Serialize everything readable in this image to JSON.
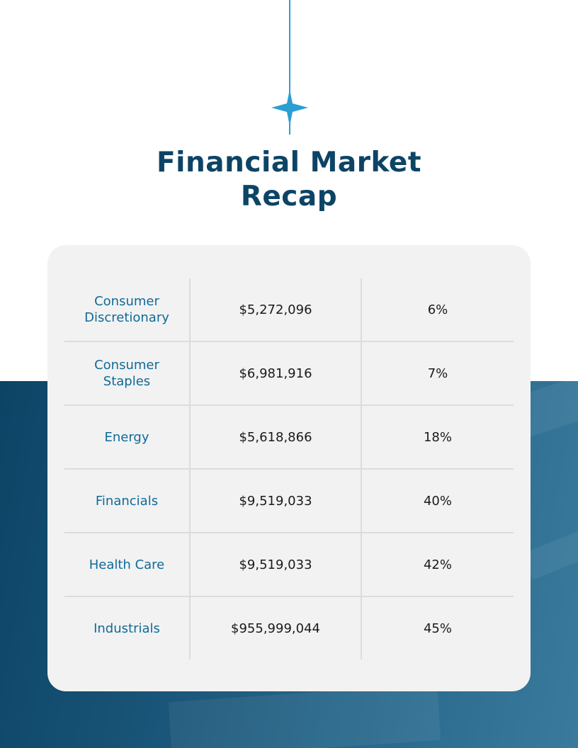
{
  "title_lines": [
    "Financial Market",
    "Recap"
  ],
  "colors": {
    "title": "#0d4466",
    "accent": "#2b9fd3",
    "sector_text": "#0f6a98",
    "card": "#f2f2f2",
    "bottom_band": "#1a5679"
  },
  "decoration": {
    "star_icon": "four-point-star-icon"
  },
  "rows": [
    {
      "sector": "Consumer Discretionary",
      "value": "$5,272,096",
      "percent": "6%"
    },
    {
      "sector": "Consumer Staples",
      "value": "$6,981,916",
      "percent": "7%"
    },
    {
      "sector": "Energy",
      "value": "$5,618,866",
      "percent": "18%"
    },
    {
      "sector": "Financials",
      "value": "$9,519,033",
      "percent": "40%"
    },
    {
      "sector": "Health Care",
      "value": "$9,519,033",
      "percent": "42%"
    },
    {
      "sector": "Industrials",
      "value": "$955,999,044",
      "percent": "45%"
    }
  ]
}
